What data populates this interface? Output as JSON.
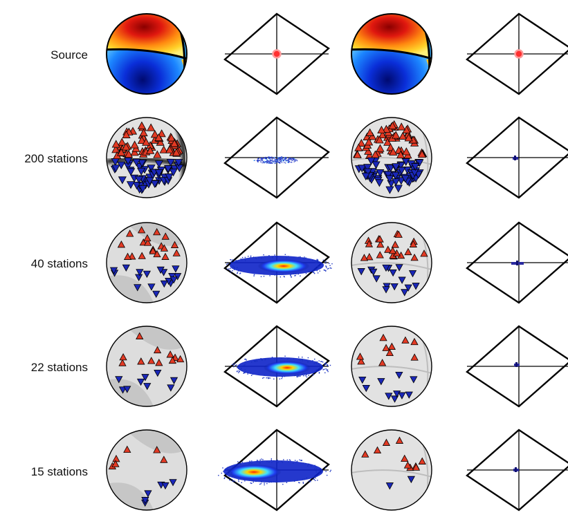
{
  "rows": [
    {
      "label": "Source",
      "stations": 0
    },
    {
      "label": "200 stations",
      "stations": 200
    },
    {
      "label": "40 stations",
      "stations": 40
    },
    {
      "label": "22 stations",
      "stations": 22
    },
    {
      "label": "15 stations",
      "stations": 15
    }
  ],
  "colors": {
    "positive": "#e23a24",
    "negative": "#1a27b8",
    "sphere_bg": "#e2e2e2",
    "sphere_bg_dark": "#c6c6c6",
    "outline": "#000000",
    "source_marker": "#ff3030"
  }
}
